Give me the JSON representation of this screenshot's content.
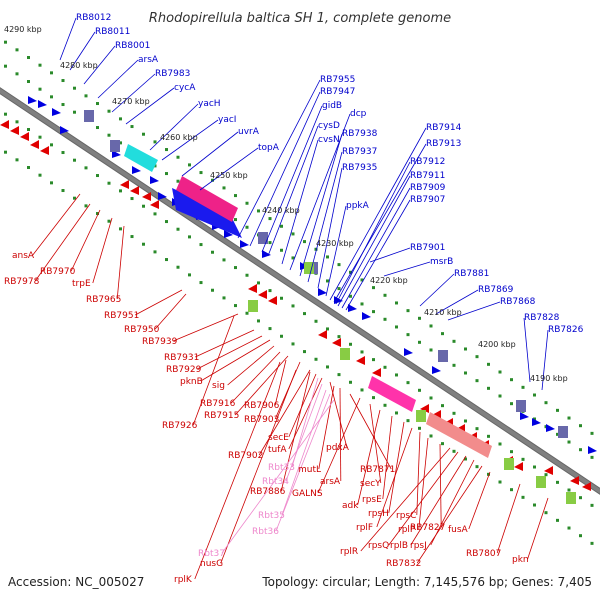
{
  "title": "Rhodopirellula baltica SH 1, complete genome",
  "footer": {
    "accession": "Accession: NC_005027",
    "summary": "Topology: circular; Length: 7,145,576 bp; Genes: 7,405"
  },
  "colors": {
    "forward": "#0000e0",
    "reverse": "#e00000",
    "forward_label": "#0000cc",
    "reverse_label": "#cc0000",
    "rna_label": "#ee88cc",
    "backbone": "#808080",
    "dots": "#2a8a2a"
  },
  "kbp_ticks": [
    "4290 kbp",
    "4280 kbp",
    "4270 kbp",
    "4260 kbp",
    "4250 kbp",
    "4240 kbp",
    "4230 kbp",
    "4220 kbp",
    "4210 kbp",
    "4200 kbp",
    "4190 kbp"
  ],
  "forward_labels": [
    "RB8012",
    "RB8011",
    "RB8001",
    "arsA",
    "RB7983",
    "cycA",
    "yacH",
    "yacI",
    "uvrA",
    "topA",
    "RB7955",
    "RB7947",
    "gidB",
    "cysD",
    "cvsN",
    "dcp",
    "RB7938",
    "RB7937",
    "RB7935",
    "ppkA",
    "RB7914",
    "RB7913",
    "RB7912",
    "RB7911",
    "RB7909",
    "RB7907",
    "RB7901",
    "msrB",
    "RB7881",
    "RB7869",
    "RB7868",
    "RB7828",
    "RB7826"
  ],
  "reverse_labels": [
    "ansA",
    "RB7978",
    "RB7970",
    "trpE",
    "RB7965",
    "RB7951",
    "RB7950",
    "RB7939",
    "RB7931",
    "RB7929",
    "pknB",
    "sig",
    "RB7926",
    "RB7916",
    "RB7915",
    "RB7906",
    "RB7903",
    "RB7902",
    "secE",
    "tufA",
    "pdxA",
    "mutL",
    "arsA",
    "RB7871",
    "GALNS",
    "secY",
    "adk",
    "rpsE",
    "rpsH",
    "rplF",
    "rpsC",
    "rplP",
    "RB7827",
    "rplR",
    "rpsQ",
    "rplB",
    "rpsJ",
    "RB7832",
    "fusA",
    "RB7807",
    "pkn",
    "RB7886",
    "nusG",
    "rplK"
  ],
  "rna_labels": [
    "Rbt33",
    "Rbt34",
    "Rbt35",
    "Rbt36",
    "Rbt37"
  ]
}
